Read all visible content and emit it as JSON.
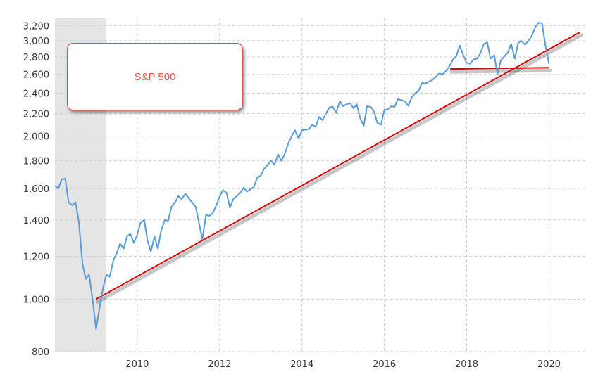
{
  "chart_data": {
    "type": "line",
    "title": "",
    "xlabel": "",
    "ylabel": "",
    "y_scale": "log",
    "xlim": [
      2008.0,
      2020.9
    ],
    "ylim": [
      800,
      3300
    ],
    "x_ticks": [
      {
        "value": 2010,
        "label": "2010"
      },
      {
        "value": 2012,
        "label": "2012"
      },
      {
        "value": 2014,
        "label": "2014"
      },
      {
        "value": 2016,
        "label": "2016"
      },
      {
        "value": 2018,
        "label": "2018"
      },
      {
        "value": 2020,
        "label": "2020"
      }
    ],
    "y_ticks": [
      {
        "value": 800,
        "label": "800"
      },
      {
        "value": 1000,
        "label": "1,000"
      },
      {
        "value": 1200,
        "label": "1,200"
      },
      {
        "value": 1400,
        "label": "1,400"
      },
      {
        "value": 1600,
        "label": "1,600"
      },
      {
        "value": 1800,
        "label": "1,800"
      },
      {
        "value": 2000,
        "label": "2,000"
      },
      {
        "value": 2200,
        "label": "2,200"
      },
      {
        "value": 2400,
        "label": "2,400"
      },
      {
        "value": 2600,
        "label": "2,600"
      },
      {
        "value": 2800,
        "label": "2,800"
      },
      {
        "value": 3000,
        "label": "3,000"
      },
      {
        "value": 3200,
        "label": "3,200"
      }
    ],
    "grid": true,
    "shaded_region": {
      "x_start": 2008.0,
      "x_end": 2009.25,
      "color": "#e5e5e5"
    },
    "series": [
      {
        "color": "#5b9bd5",
        "points": [
          [
            2008.0,
            1620
          ],
          [
            2008.08,
            1600
          ],
          [
            2008.17,
            1665
          ],
          [
            2008.25,
            1670
          ],
          [
            2008.33,
            1510
          ],
          [
            2008.42,
            1490
          ],
          [
            2008.5,
            1510
          ],
          [
            2008.58,
            1390
          ],
          [
            2008.67,
            1160
          ],
          [
            2008.75,
            1090
          ],
          [
            2008.83,
            1110
          ],
          [
            2008.92,
            990
          ],
          [
            2009.0,
            880
          ],
          [
            2009.08,
            960
          ],
          [
            2009.17,
            1050
          ],
          [
            2009.25,
            1110
          ],
          [
            2009.33,
            1100
          ],
          [
            2009.42,
            1180
          ],
          [
            2009.5,
            1215
          ],
          [
            2009.58,
            1265
          ],
          [
            2009.67,
            1240
          ],
          [
            2009.75,
            1305
          ],
          [
            2009.83,
            1320
          ],
          [
            2009.92,
            1270
          ],
          [
            2010.0,
            1315
          ],
          [
            2010.08,
            1385
          ],
          [
            2010.17,
            1400
          ],
          [
            2010.25,
            1280
          ],
          [
            2010.33,
            1225
          ],
          [
            2010.42,
            1305
          ],
          [
            2010.5,
            1240
          ],
          [
            2010.58,
            1340
          ],
          [
            2010.67,
            1400
          ],
          [
            2010.75,
            1395
          ],
          [
            2010.83,
            1480
          ],
          [
            2010.92,
            1510
          ],
          [
            2011.0,
            1550
          ],
          [
            2011.08,
            1530
          ],
          [
            2011.17,
            1565
          ],
          [
            2011.25,
            1535
          ],
          [
            2011.33,
            1510
          ],
          [
            2011.42,
            1480
          ],
          [
            2011.5,
            1380
          ],
          [
            2011.58,
            1290
          ],
          [
            2011.67,
            1430
          ],
          [
            2011.75,
            1425
          ],
          [
            2011.83,
            1440
          ],
          [
            2011.92,
            1490
          ],
          [
            2012.0,
            1545
          ],
          [
            2012.08,
            1590
          ],
          [
            2012.17,
            1570
          ],
          [
            2012.25,
            1475
          ],
          [
            2012.33,
            1530
          ],
          [
            2012.42,
            1550
          ],
          [
            2012.5,
            1570
          ],
          [
            2012.58,
            1605
          ],
          [
            2012.67,
            1580
          ],
          [
            2012.75,
            1595
          ],
          [
            2012.83,
            1610
          ],
          [
            2012.92,
            1680
          ],
          [
            2013.0,
            1690
          ],
          [
            2013.08,
            1740
          ],
          [
            2013.17,
            1770
          ],
          [
            2013.25,
            1800
          ],
          [
            2013.33,
            1770
          ],
          [
            2013.42,
            1850
          ],
          [
            2013.5,
            1800
          ],
          [
            2013.58,
            1850
          ],
          [
            2013.67,
            1940
          ],
          [
            2013.75,
            2000
          ],
          [
            2013.83,
            2050
          ],
          [
            2013.92,
            1980
          ],
          [
            2014.0,
            2050
          ],
          [
            2014.08,
            2055
          ],
          [
            2014.17,
            2060
          ],
          [
            2014.25,
            2100
          ],
          [
            2014.33,
            2080
          ],
          [
            2014.42,
            2170
          ],
          [
            2014.5,
            2140
          ],
          [
            2014.58,
            2200
          ],
          [
            2014.67,
            2260
          ],
          [
            2014.75,
            2265
          ],
          [
            2014.83,
            2210
          ],
          [
            2014.92,
            2320
          ],
          [
            2015.0,
            2270
          ],
          [
            2015.08,
            2290
          ],
          [
            2015.17,
            2300
          ],
          [
            2015.25,
            2250
          ],
          [
            2015.33,
            2290
          ],
          [
            2015.42,
            2150
          ],
          [
            2015.5,
            2090
          ],
          [
            2015.58,
            2270
          ],
          [
            2015.67,
            2265
          ],
          [
            2015.75,
            2220
          ],
          [
            2015.83,
            2115
          ],
          [
            2015.92,
            2100
          ],
          [
            2016.0,
            2235
          ],
          [
            2016.08,
            2240
          ],
          [
            2016.17,
            2270
          ],
          [
            2016.25,
            2265
          ],
          [
            2016.33,
            2340
          ],
          [
            2016.42,
            2330
          ],
          [
            2016.5,
            2320
          ],
          [
            2016.58,
            2275
          ],
          [
            2016.67,
            2360
          ],
          [
            2016.75,
            2400
          ],
          [
            2016.83,
            2420
          ],
          [
            2016.92,
            2510
          ],
          [
            2017.0,
            2500
          ],
          [
            2017.08,
            2520
          ],
          [
            2017.17,
            2540
          ],
          [
            2017.25,
            2570
          ],
          [
            2017.33,
            2610
          ],
          [
            2017.42,
            2600
          ],
          [
            2017.5,
            2640
          ],
          [
            2017.58,
            2690
          ],
          [
            2017.67,
            2770
          ],
          [
            2017.75,
            2810
          ],
          [
            2017.83,
            2940
          ],
          [
            2017.92,
            2820
          ],
          [
            2018.0,
            2730
          ],
          [
            2018.08,
            2720
          ],
          [
            2018.17,
            2770
          ],
          [
            2018.25,
            2780
          ],
          [
            2018.33,
            2840
          ],
          [
            2018.42,
            2960
          ],
          [
            2018.5,
            2980
          ],
          [
            2018.58,
            2780
          ],
          [
            2018.67,
            2820
          ],
          [
            2018.75,
            2600
          ],
          [
            2018.83,
            2760
          ],
          [
            2018.92,
            2810
          ],
          [
            2019.0,
            2850
          ],
          [
            2019.08,
            2960
          ],
          [
            2019.17,
            2780
          ],
          [
            2019.25,
            2970
          ],
          [
            2019.33,
            3000
          ],
          [
            2019.42,
            2950
          ],
          [
            2019.5,
            3000
          ],
          [
            2019.58,
            3060
          ],
          [
            2019.67,
            3180
          ],
          [
            2019.75,
            3240
          ],
          [
            2019.83,
            3230
          ],
          [
            2019.92,
            2920
          ],
          [
            2020.0,
            2720
          ]
        ]
      }
    ],
    "trend_lines": [
      {
        "color": "#e00000",
        "from": [
          2009.0,
          1000
        ],
        "to": [
          2020.75,
          3110
        ]
      },
      {
        "color": "#e00000",
        "from": [
          2017.6,
          2660
        ],
        "to": [
          2020.0,
          2675
        ]
      }
    ],
    "annotation": {
      "text": "S&P 500",
      "color": "#e8524a"
    }
  }
}
